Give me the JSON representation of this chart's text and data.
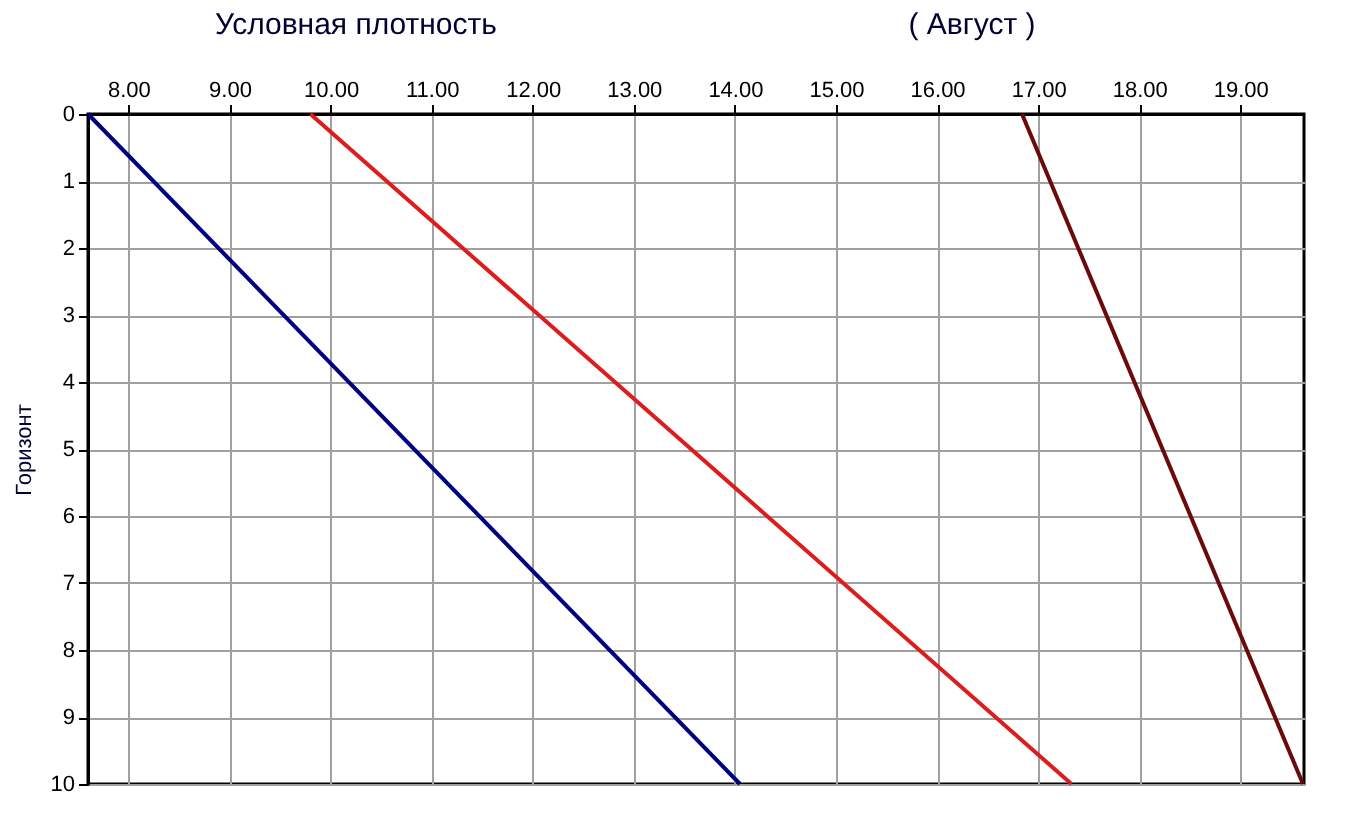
{
  "chart_data": {
    "type": "line",
    "title": "Условная плотность",
    "annotations": [
      "( Август )"
    ],
    "ylabel": "Горизонт",
    "series": [
      {
        "color": "#000080",
        "x": [
          7.6,
          14.05
        ],
        "values": [
          0,
          10
        ]
      },
      {
        "color": "#dd1c1c",
        "x": [
          9.8,
          17.33
        ],
        "values": [
          0,
          10
        ]
      },
      {
        "color": "#6b0a0a",
        "x": [
          16.84,
          19.62
        ],
        "values": [
          0,
          10
        ]
      }
    ],
    "xlim": [
      7.6,
      19.63
    ],
    "xticks": [
      {
        "value": 8,
        "label": "8.00"
      },
      {
        "value": 9,
        "label": "9.00"
      },
      {
        "value": 10,
        "label": "10.00"
      },
      {
        "value": 11,
        "label": "11.00"
      },
      {
        "value": 12,
        "label": "12.00"
      },
      {
        "value": 13,
        "label": "13.00"
      },
      {
        "value": 14,
        "label": "14.00"
      },
      {
        "value": 15,
        "label": "15.00"
      },
      {
        "value": 16,
        "label": "16.00"
      },
      {
        "value": 17,
        "label": "17.00"
      },
      {
        "value": 18,
        "label": "18.00"
      },
      {
        "value": 19,
        "label": "19.00"
      }
    ],
    "ylim": [
      10,
      0
    ],
    "yticks": [
      0,
      1,
      2,
      3,
      4,
      5,
      6,
      7,
      8,
      9,
      10
    ],
    "grid": true
  }
}
